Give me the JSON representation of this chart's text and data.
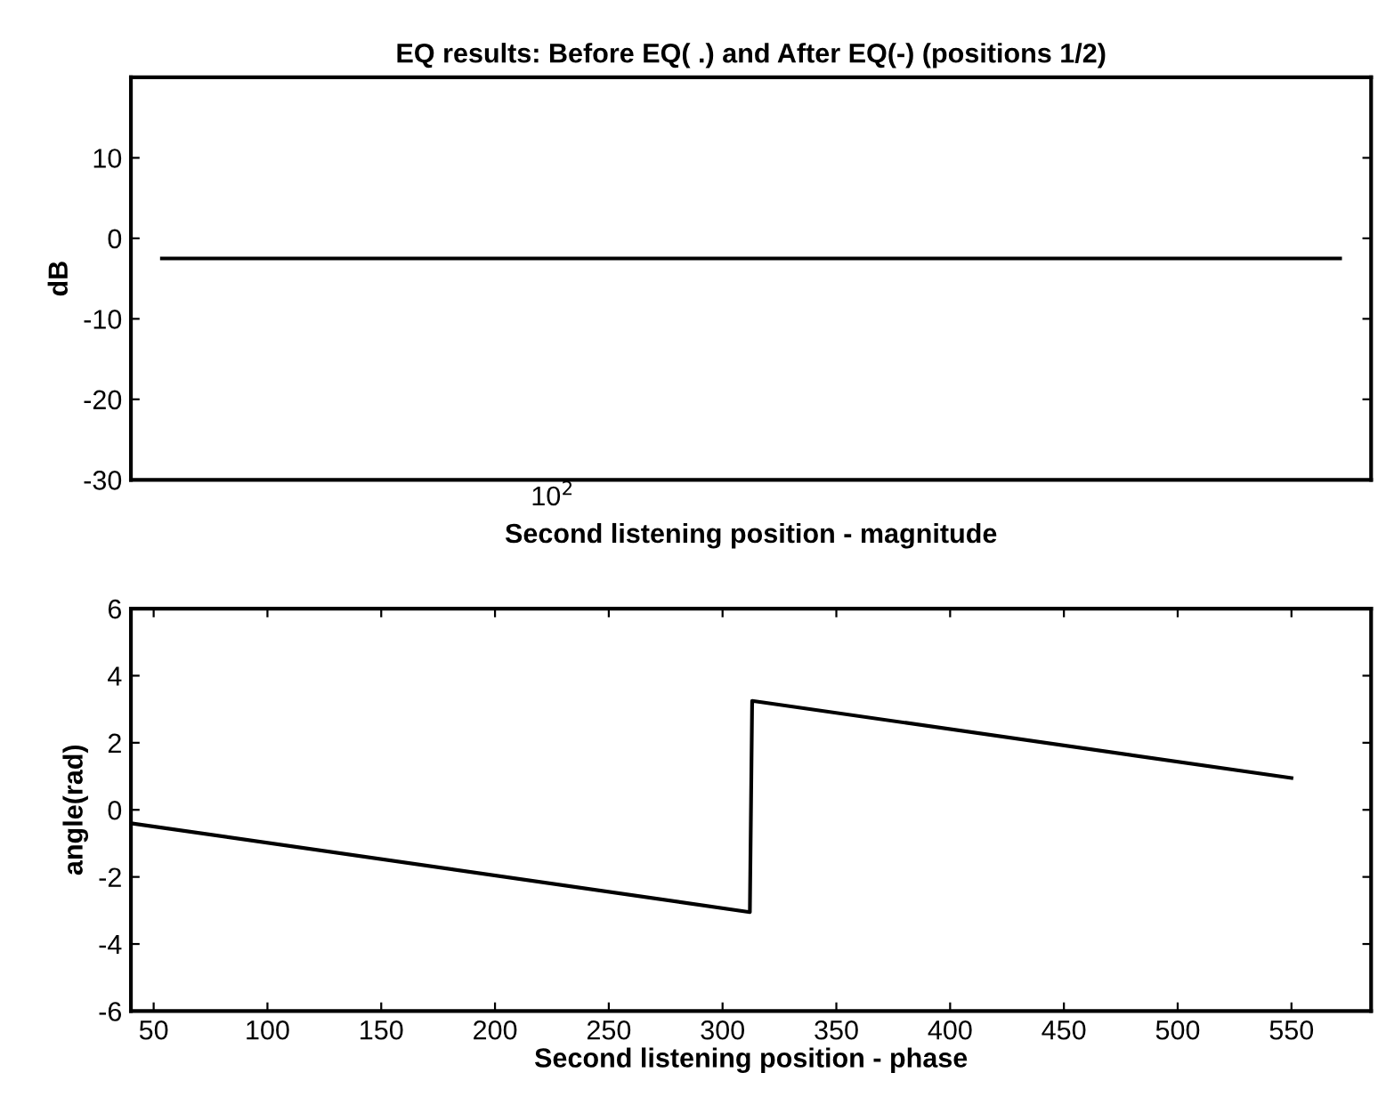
{
  "chart_data": [
    {
      "type": "line",
      "title": "EQ results: Before EQ( .) and After EQ(-) (positions 1/2)",
      "xlabel": "Second listening position - magnitude",
      "ylabel": "dB",
      "annotations": [
        "10$^{2}$"
      ],
      "categories": [
        null,
        null,
        null,
        null,
        null,
        null,
        null,
        null,
        null,
        null,
        null,
        null,
        null,
        null,
        null,
        null,
        null,
        null,
        null,
        null
      ],
      "series": [
        {
          "color": "#000000",
          "values": [
            -2.5,
            -2.5,
            -2.5,
            -2.5,
            -2.5,
            -2.5,
            -2.5,
            -2.5,
            -2.5,
            -2.5,
            -2.5,
            -2.5,
            -2.5,
            -2.5,
            -2.5,
            -2.5,
            -2.5,
            -2.5,
            -2.5,
            -2.5
          ]
        }
      ],
      "ylim": [
        -30,
        20
      ],
      "yticks": [
        -30,
        -20,
        -10,
        0,
        10
      ],
      "grid": false
    },
    {
      "type": "line",
      "xlabel": "Second listening position - phase",
      "ylabel": "angle(rad)",
      "series": [
        {
          "color": "#000000",
          "x": [
            40,
            312,
            313,
            550
          ],
          "values": [
            -0.4,
            -3.05,
            3.25,
            0.95
          ]
        }
      ],
      "xlim": [
        40,
        585
      ],
      "xticks": [
        50,
        100,
        150,
        200,
        250,
        300,
        350,
        400,
        450,
        500,
        550
      ],
      "ylim": [
        -6,
        6
      ],
      "yticks": [
        -6,
        -4,
        -2,
        0,
        2,
        4,
        6
      ],
      "grid": false
    }
  ]
}
